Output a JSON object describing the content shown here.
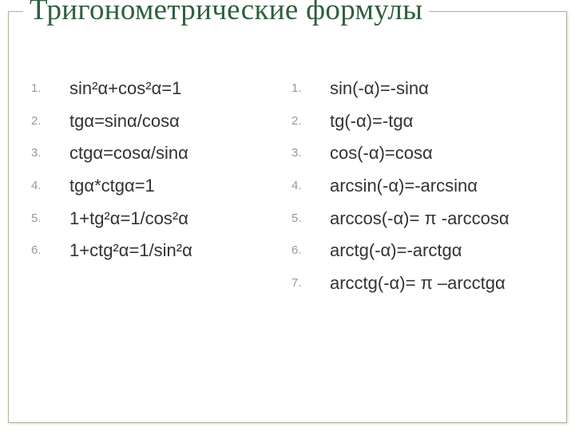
{
  "title": {
    "text": "Тригонометрические формулы",
    "color": "#2f5f3f",
    "fontsize_pt": 28
  },
  "layout": {
    "columns": 2,
    "frame_border_color": "#b7b098",
    "background": "#ffffff"
  },
  "list_style": {
    "item_fontsize_pt": 17,
    "item_color": "#333333",
    "number_fontsize_pt": 11,
    "number_color": "#999999"
  },
  "left": {
    "items": [
      "sin²α+cos²α=1",
      "tgα=sinα/cosα",
      "ctgα=cosα/sinα",
      "tgα*ctgα=1",
      "1+tg²α=1/cos²α",
      "1+ctg²α=1/sin²α"
    ]
  },
  "right": {
    "items": [
      "sin(-α)=-sinα",
      "tg(-α)=-tgα",
      "cos(-α)=cosα",
      "arcsin(-α)=-arcsinα",
      "arccos(-α)= π -arccosα",
      "arctg(-α)=-arctgα",
      "arcctg(-α)= π –arcctgα"
    ]
  }
}
